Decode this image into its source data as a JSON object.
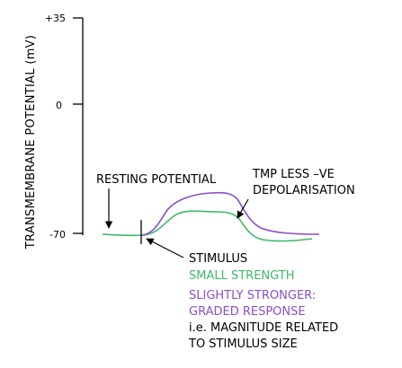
{
  "axis": {
    "ylabel": "TRANSMEMBRANE POTENTIAL (mV)",
    "ticks": [
      {
        "label": "+35",
        "value": 35
      },
      {
        "label": "0",
        "value": 0
      },
      {
        "label": "-70",
        "value": -70
      }
    ]
  },
  "annotations": {
    "resting_potential": "RESTING POTENTIAL",
    "tmp_line1": "TMP LESS –VE",
    "tmp_line2": "DEPOLARISATION",
    "stimulus": "STIMULUS",
    "small_strength": "SMALL STRENGTH",
    "stronger_line1": "SLIGHTLY STRONGER:",
    "stronger_line2": "GRADED RESPONSE",
    "magnitude_line1": "i.e. MAGNITUDE RELATED",
    "magnitude_line2": "TO STIMULUS SIZE"
  },
  "colors": {
    "axis": "#000000",
    "text": "#000000",
    "green": "#3cb96a",
    "purple": "#8a4fc4"
  },
  "curves": {
    "small": {
      "name": "SMALL STRENGTH",
      "color_key": "green"
    },
    "stronger": {
      "name": "SLIGHTLY STRONGER",
      "color_key": "purple"
    }
  }
}
